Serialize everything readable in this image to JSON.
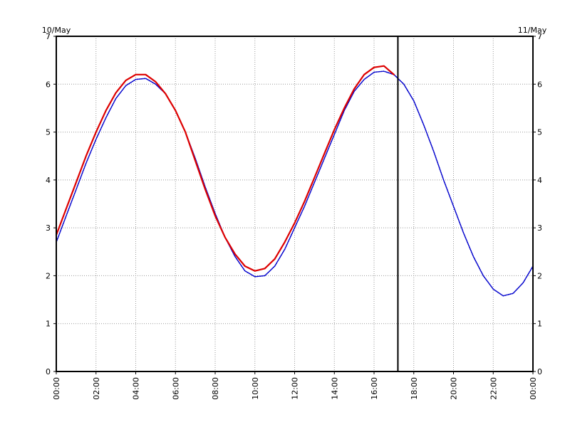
{
  "chart_data": {
    "type": "line",
    "date_left": "10/May",
    "date_right": "11/May",
    "y_ticks": [
      "0",
      "1",
      "2",
      "3",
      "4",
      "5",
      "6",
      "7"
    ],
    "x_ticks": [
      "00:00",
      "02:00",
      "04:00",
      "06:00",
      "08:00",
      "10:00",
      "12:00",
      "14:00",
      "16:00",
      "18:00",
      "20:00",
      "22:00",
      "00:00"
    ],
    "xlim_hours": [
      0,
      24
    ],
    "ylim": [
      0,
      7
    ],
    "grid": true,
    "current_time_hours": 17.2,
    "series": [
      {
        "color": "#0000cc",
        "style": "dotted",
        "x_hours": [
          0,
          0.5,
          1,
          1.5,
          2,
          2.5,
          3,
          3.5,
          4,
          4.5,
          5,
          5.5,
          6,
          6.5,
          7,
          7.5,
          8,
          8.5,
          9,
          9.5,
          10,
          10.5,
          11,
          11.5,
          12,
          12.5,
          13,
          13.5,
          14,
          14.5,
          15,
          15.5,
          16,
          16.5,
          17,
          17.5,
          18,
          18.5,
          19,
          19.5,
          20,
          20.5,
          21,
          21.5,
          22,
          22.5,
          23,
          23.5,
          24
        ],
        "values": [
          2.7,
          3.25,
          3.8,
          4.35,
          4.85,
          5.3,
          5.7,
          5.97,
          6.1,
          6.12,
          6.0,
          5.8,
          5.45,
          5.0,
          4.45,
          3.85,
          3.3,
          2.8,
          2.4,
          2.1,
          1.98,
          2.0,
          2.2,
          2.55,
          3.0,
          3.45,
          3.95,
          4.45,
          4.95,
          5.45,
          5.85,
          6.1,
          6.25,
          6.27,
          6.2,
          6.0,
          5.65,
          5.15,
          4.6,
          4.0,
          3.45,
          2.9,
          2.4,
          2.0,
          1.72,
          1.58,
          1.63,
          1.85,
          2.2
        ]
      },
      {
        "color": "#dd0000",
        "style": "solid",
        "x_hours": [
          0,
          0.5,
          1,
          1.5,
          2,
          2.5,
          3,
          3.5,
          4,
          4.5,
          5,
          5.5,
          6,
          6.5,
          7,
          7.5,
          8,
          8.5,
          9,
          9.5,
          10,
          10.5,
          11,
          11.5,
          12,
          12.5,
          13,
          13.5,
          14,
          14.5,
          15,
          15.5,
          16,
          16.5,
          17
        ],
        "values": [
          2.85,
          3.4,
          3.95,
          4.5,
          5.0,
          5.45,
          5.82,
          6.08,
          6.2,
          6.2,
          6.05,
          5.8,
          5.45,
          5.0,
          4.4,
          3.8,
          3.25,
          2.8,
          2.45,
          2.2,
          2.1,
          2.15,
          2.35,
          2.7,
          3.1,
          3.55,
          4.05,
          4.55,
          5.05,
          5.5,
          5.9,
          6.2,
          6.35,
          6.38,
          6.2
        ]
      }
    ]
  }
}
